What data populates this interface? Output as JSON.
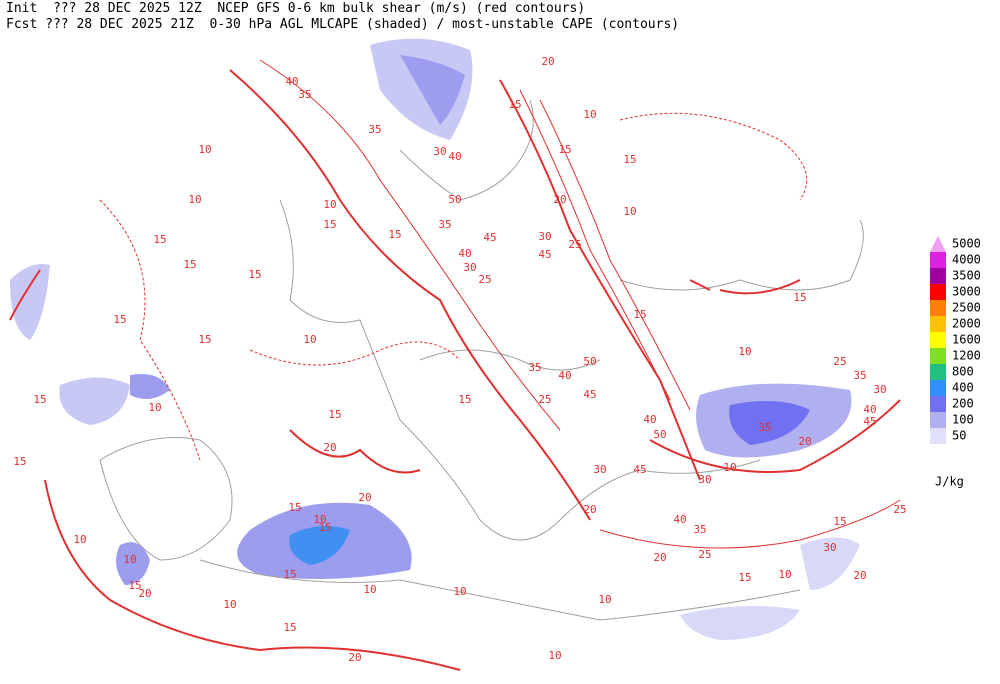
{
  "header": {
    "init": "Init  ??? 28 DEC 2025 12Z  NCEP GFS 0-6 km bulk shear (m/s) (red contours)",
    "fcst": "Fcst ??? 28 DEC 2025 21Z  0-30 hPa AGL MLCAPE (shaded) / most-unstable CAPE (contours)"
  },
  "legend": {
    "unit": "J/kg",
    "levels": [
      {
        "value": 5000,
        "color": "#f0a0f0"
      },
      {
        "value": 4000,
        "color": "#e020e0"
      },
      {
        "value": 3500,
        "color": "#a000a0"
      },
      {
        "value": 3000,
        "color": "#ff0000"
      },
      {
        "value": 2500,
        "color": "#ff8000"
      },
      {
        "value": 2000,
        "color": "#ffc000"
      },
      {
        "value": 1600,
        "color": "#ffff00"
      },
      {
        "value": 1200,
        "color": "#80e020"
      },
      {
        "value": 800,
        "color": "#20c080"
      },
      {
        "value": 400,
        "color": "#3090ff"
      },
      {
        "value": 200,
        "color": "#7070f0"
      },
      {
        "value": 100,
        "color": "#b0b0f0"
      },
      {
        "value": 50,
        "color": "#e0e0fa"
      }
    ]
  },
  "contour_labels": [
    40,
    35,
    35,
    30,
    40,
    50,
    35,
    45,
    40,
    30,
    25,
    30,
    25,
    45,
    15,
    20,
    10,
    15,
    15,
    10,
    20,
    10,
    10,
    15,
    15,
    15,
    10,
    15,
    15,
    10,
    15,
    15,
    10,
    15,
    15,
    20,
    15,
    35,
    40,
    25,
    45,
    50,
    15,
    10,
    15,
    25,
    35,
    30,
    40,
    45,
    35,
    20,
    10,
    30,
    50,
    40,
    30,
    45,
    35,
    40,
    20,
    20,
    25,
    15,
    10,
    30,
    20,
    25,
    15,
    20,
    15,
    15,
    10,
    15,
    20,
    10,
    15,
    20,
    10,
    10,
    10,
    10,
    10,
    10,
    15,
    15
  ]
}
